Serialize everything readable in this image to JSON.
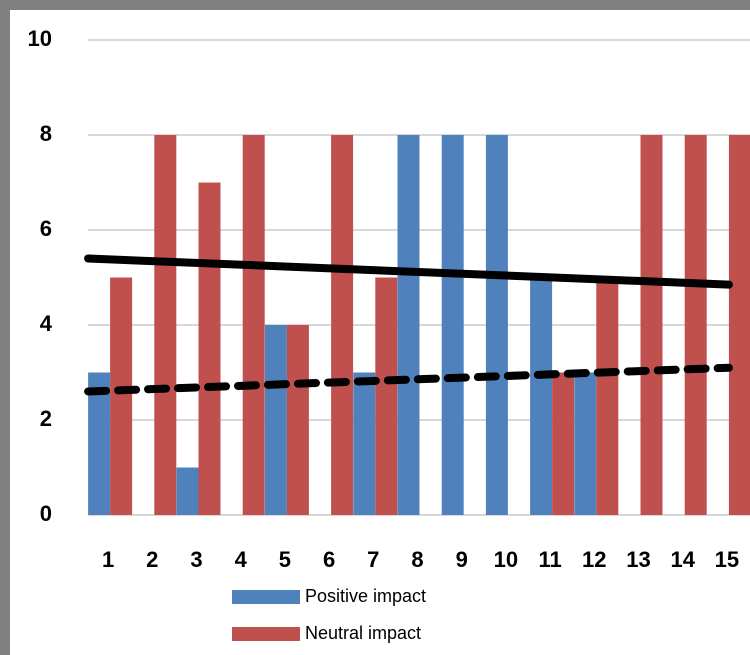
{
  "chart_data": {
    "type": "bar",
    "categories": [
      "1",
      "2",
      "3",
      "4",
      "5",
      "6",
      "7",
      "8",
      "9",
      "10",
      "11",
      "12",
      "13",
      "14",
      "15"
    ],
    "series": [
      {
        "name": "Positive impact",
        "color": "#4f81bd",
        "values": [
          3,
          0,
          1,
          0,
          4,
          0,
          3,
          8,
          8,
          8,
          5,
          3,
          0,
          0,
          0
        ]
      },
      {
        "name": "Neutral impact",
        "color": "#c0504d",
        "values": [
          5,
          8,
          7,
          8,
          4,
          8,
          5,
          0,
          0,
          0,
          3,
          5,
          8,
          8,
          8
        ]
      }
    ],
    "trendlines": [
      {
        "dashed": false,
        "color": "#000000",
        "values": [
          5.4,
          4.85
        ]
      },
      {
        "dashed": true,
        "color": "#000000",
        "values": [
          2.6,
          3.1
        ]
      }
    ],
    "ylim": [
      0,
      10
    ],
    "yticks": [
      0,
      2,
      4,
      6,
      8,
      10
    ],
    "grid": true
  }
}
